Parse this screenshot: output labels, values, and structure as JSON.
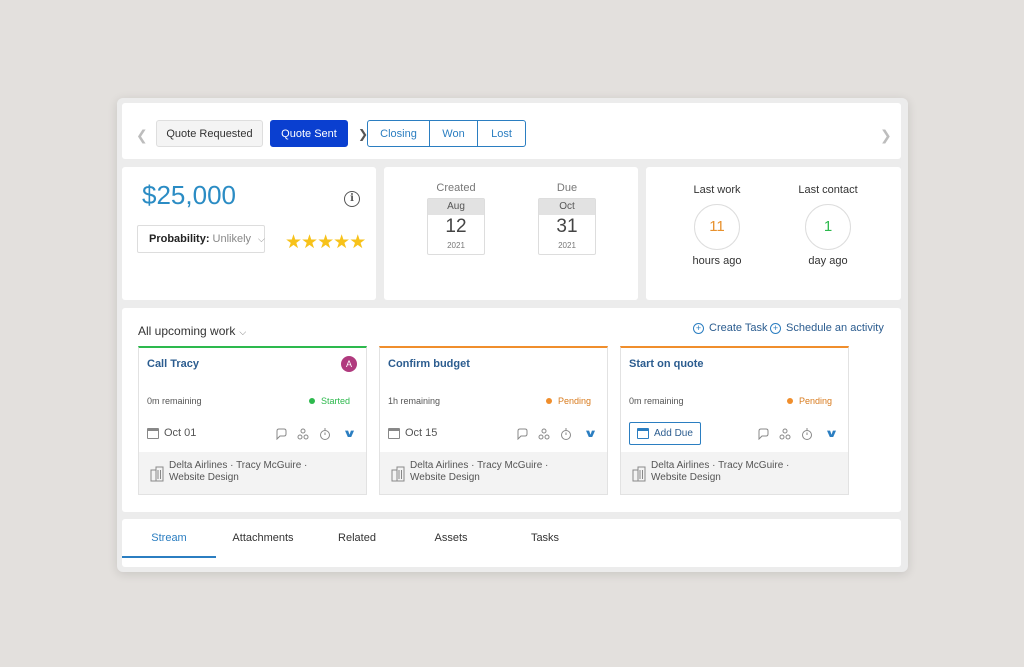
{
  "pipeline": {
    "stages": [
      "Quote Requested",
      "Quote Sent",
      "Closing",
      "Won",
      "Lost"
    ],
    "active_stage": "Quote Sent"
  },
  "deal": {
    "amount": "$25,000",
    "probability_label": "Probability:",
    "probability_value": "Unlikely",
    "rating_stars": 5
  },
  "dates": {
    "created": {
      "title": "Created",
      "month": "Aug",
      "day": "12",
      "year": "2021"
    },
    "due": {
      "title": "Due",
      "month": "Oct",
      "day": "31",
      "year": "2021"
    }
  },
  "activity": {
    "last_work": {
      "title": "Last work",
      "value": "11",
      "unit": "hours ago",
      "color": "#e8912d"
    },
    "last_contact": {
      "title": "Last contact",
      "value": "1",
      "unit": "day ago",
      "color": "#2db94d"
    }
  },
  "work": {
    "filter_label": "All upcoming work",
    "create_task": "Create Task",
    "schedule_activity": "Schedule an activity",
    "tasks": [
      {
        "name": "Call Tracy",
        "avatar": "A",
        "remaining": "0m remaining",
        "status": "Started",
        "due": "Oct 01",
        "company": "Delta Airlines · Tracy McGuire ·",
        "project": "Website Design"
      },
      {
        "name": "Confirm budget",
        "remaining": "1h remaining",
        "status": "Pending",
        "due": "Oct 15",
        "company": "Delta Airlines · Tracy McGuire ·",
        "project": "Website Design"
      },
      {
        "name": "Start on quote",
        "remaining": "0m remaining",
        "status": "Pending",
        "add_due": "Add Due",
        "company": "Delta Airlines · Tracy McGuire ·",
        "project": "Website Design"
      }
    ]
  },
  "tabs": [
    "Stream",
    "Attachments",
    "Related",
    "Assets",
    "Tasks"
  ],
  "active_tab": "Stream",
  "colors": {
    "accent": "#0a3fd0",
    "link": "#2b7ec1",
    "amount": "#2b8cc4",
    "star": "#f7c21a"
  }
}
